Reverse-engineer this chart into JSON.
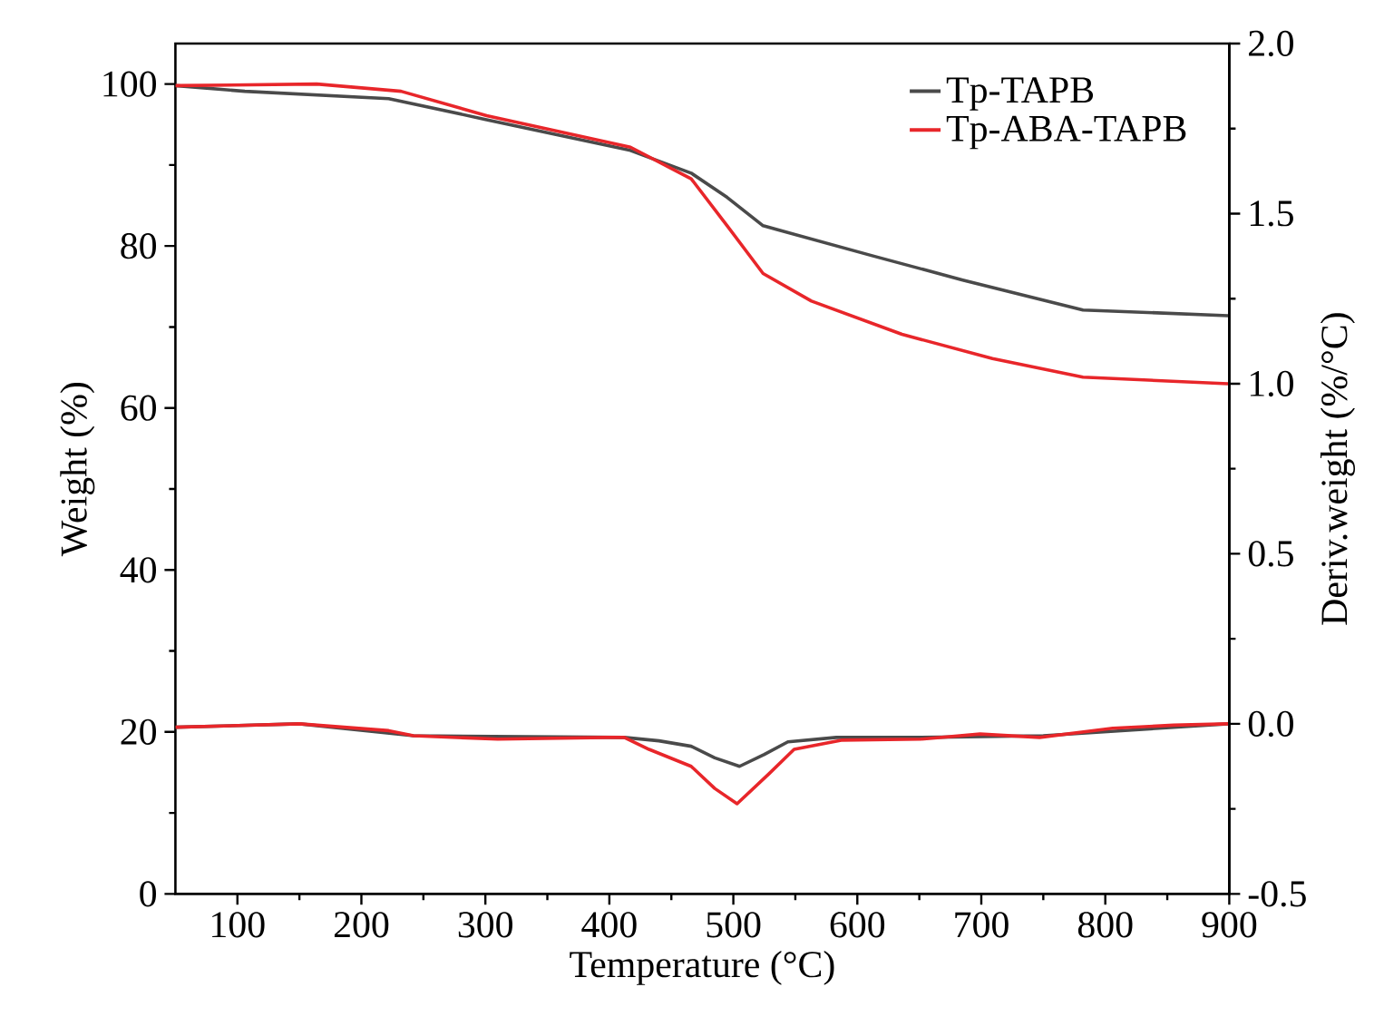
{
  "chart_data": {
    "type": "line",
    "xlabel": "Temperature (°C)",
    "ylabel": "Weight (%)",
    "y2label": "Deriv.weight (%/°C)",
    "xlim": [
      50,
      900
    ],
    "xticks": [
      100,
      200,
      300,
      400,
      500,
      600,
      700,
      800,
      900
    ],
    "ylim": [
      0,
      105
    ],
    "yticks": [
      0,
      20,
      40,
      60,
      80,
      100
    ],
    "y2lim": [
      -0.5,
      2.0
    ],
    "y2ticks": [
      {
        "value": -0.5,
        "label": "-0.5"
      },
      {
        "value": 0,
        "label": "0.0"
      },
      {
        "value": 0.5,
        "label": "0.5"
      },
      {
        "value": 1,
        "label": "1.0"
      },
      {
        "value": 1.5,
        "label": "1.5"
      },
      {
        "value": 2,
        "label": "2.0"
      }
    ],
    "legend": "top right",
    "series": [
      {
        "name": "Tp-TAPB",
        "color": "#4a4a4a",
        "x": [
          50,
          106,
          222,
          301,
          417,
          466,
          495,
          524,
          612,
          685,
          782,
          899
        ],
        "values": [
          99.8,
          99.1,
          98.2,
          95.6,
          91.8,
          89.0,
          86.0,
          82.5,
          78.8,
          75.8,
          72.1,
          71.4
        ]
      },
      {
        "name": "Tp-ABA-TAPB",
        "color": "#e8262a",
        "x": [
          50,
          164,
          232,
          301,
          417,
          466,
          495,
          524,
          563,
          636,
          709,
          782,
          899
        ],
        "values": [
          99.8,
          100.0,
          99.1,
          96.1,
          92.2,
          88.3,
          82.5,
          76.6,
          73.2,
          69.1,
          66.1,
          63.8,
          63.0
        ]
      },
      {
        "color": "#4a4a4a",
        "axis": "y2",
        "x": [
          50,
          150,
          242,
          310,
          412,
          440,
          466,
          485,
          505,
          525,
          544,
          583,
          650,
          700,
          750,
          806,
          855,
          899
        ],
        "values": [
          -0.01,
          0.0,
          -0.035,
          null,
          -0.04,
          -0.05,
          -0.066,
          -0.1,
          -0.125,
          -0.09,
          -0.053,
          -0.04,
          -0.04,
          null,
          -0.035,
          null,
          null,
          0.0
        ]
      },
      {
        "color": "#e8262a",
        "axis": "y2",
        "x": [
          50,
          150,
          222,
          242,
          310,
          398,
          412,
          432,
          466,
          485,
          503,
          529,
          549,
          587,
          651,
          699,
          747,
          806,
          855,
          899
        ],
        "values": [
          -0.01,
          0.0,
          -0.02,
          -0.035,
          -0.045,
          -0.04,
          -0.04,
          -0.075,
          -0.125,
          -0.19,
          -0.235,
          -0.146,
          -0.075,
          -0.048,
          -0.045,
          -0.03,
          -0.04,
          -0.013,
          -0.004,
          0.0
        ]
      }
    ]
  }
}
